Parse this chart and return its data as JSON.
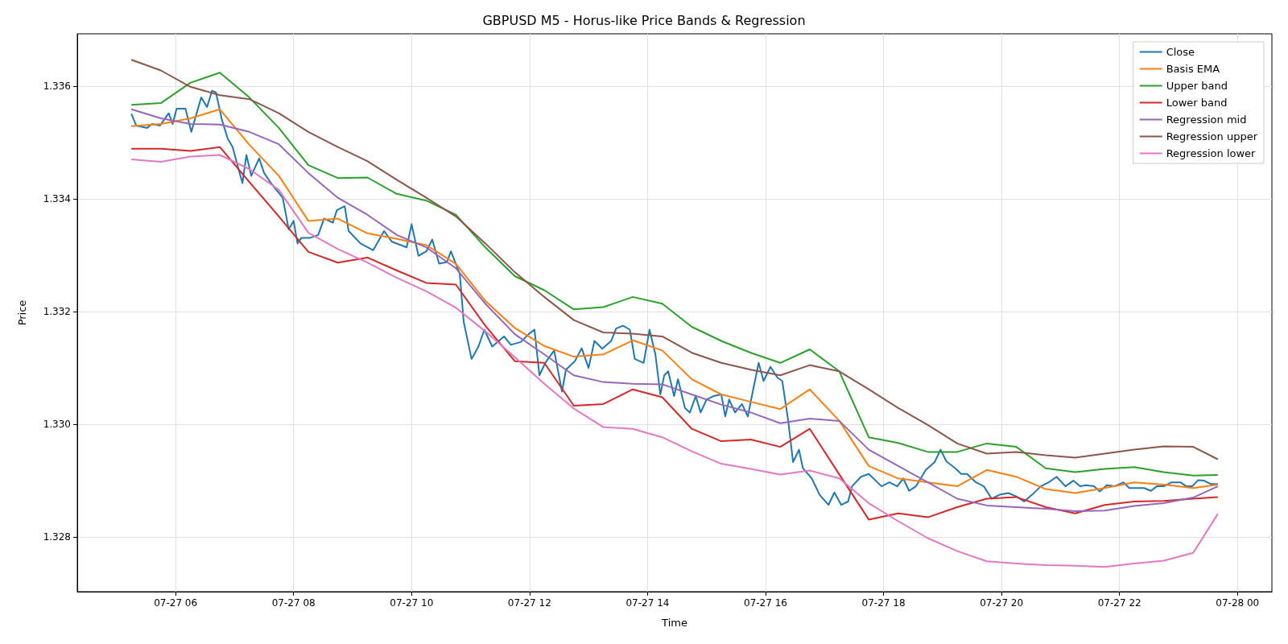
{
  "chart_data": {
    "type": "line",
    "title": "GBPUSD M5 - Horus-like Price Bands & Regression",
    "xlabel": "Time",
    "ylabel": "Price",
    "x": [
      "--07-27T05:15",
      "--07-27T05:45",
      "--07-27T06:15",
      "--07-27T06:45",
      "--07-27T07:15",
      "--07-27T07:45",
      "--07-27T08:15",
      "--07-27T08:45",
      "--07-27T09:15",
      "--07-27T09:45",
      "--07-27T10:15",
      "--07-27T10:45",
      "--07-27T11:15",
      "--07-27T11:45",
      "--07-27T12:15",
      "--07-27T12:45",
      "--07-27T13:15",
      "--07-27T13:45",
      "--07-27T14:15",
      "--07-27T14:45",
      "--07-27T15:15",
      "--07-27T15:45",
      "--07-27T16:15",
      "--07-27T16:45",
      "--07-27T17:15",
      "--07-27T17:45",
      "--07-27T18:15",
      "--07-27T18:45",
      "--07-27T19:15",
      "--07-27T19:45",
      "--07-27T20:15",
      "--07-27T20:45",
      "--07-27T21:15",
      "--07-27T21:45",
      "--07-27T22:15",
      "--07-27T22:45",
      "--07-27T23:15",
      "--07-27T23:40"
    ],
    "series": [
      {
        "name": "Close",
        "color": "#1f77b4",
        "x": [
          "--07-27T05:15",
          "--07-27T05:20",
          "--07-27T05:31",
          "--07-27T05:36",
          "--07-27T05:44",
          "--07-27T05:53",
          "--07-27T05:57",
          "--07-27T06:01",
          "--07-27T06:10",
          "--07-27T06:16",
          "--07-27T06:26",
          "--07-27T06:32",
          "--07-27T06:37",
          "--07-27T06:41",
          "--07-27T06:47",
          "--07-27T06:53",
          "--07-27T06:58",
          "--07-27T07:04",
          "--07-27T07:08",
          "--07-27T07:12",
          "--07-27T07:17",
          "--07-27T07:25",
          "--07-27T07:30",
          "--07-27T07:37",
          "--07-27T07:49",
          "--07-27T07:55",
          "--07-27T08:00",
          "--07-27T08:04",
          "--07-27T08:08",
          "--07-27T08:17",
          "--07-27T08:25",
          "--07-27T08:31",
          "--07-27T08:40",
          "--07-27T08:44",
          "--07-27T08:52",
          "--07-27T08:56",
          "--07-27T09:08",
          "--07-27T09:21",
          "--07-27T09:32",
          "--07-27T09:40",
          "--07-27T09:55",
          "--07-27T10:00",
          "--07-27T10:07",
          "--07-27T10:15",
          "--07-27T10:21",
          "--07-27T10:28",
          "--07-27T10:36",
          "--07-27T10:40",
          "--07-27T10:49",
          "--07-27T10:53",
          "--07-27T11:01",
          "--07-27T11:08",
          "--07-27T11:14",
          "--07-27T11:22",
          "--07-27T11:34",
          "--07-27T11:41",
          "--07-27T11:51",
          "--07-27T11:59",
          "--07-27T12:05",
          "--07-27T12:10",
          "--07-27T12:16",
          "--07-27T12:25",
          "--07-27T12:33",
          "--07-27T12:37",
          "--07-27T12:46",
          "--07-27T12:53",
          "--07-27T13:00",
          "--07-27T13:06",
          "--07-27T13:14",
          "--07-27T13:23",
          "--07-27T13:28",
          "--07-27T13:35",
          "--07-27T13:42",
          "--07-27T13:47",
          "--07-27T13:56",
          "--07-27T14:02",
          "--07-27T14:08",
          "--07-27T14:13",
          "--07-27T14:17",
          "--07-27T14:21",
          "--07-27T14:27",
          "--07-27T14:31",
          "--07-27T14:38",
          "--07-27T14:43",
          "--07-27T14:49",
          "--07-27T14:54",
          "--07-27T15:00",
          "--07-27T15:07",
          "--07-27T15:15",
          "--07-27T15:19",
          "--07-27T15:23",
          "--07-27T15:29",
          "--07-27T15:36",
          "--07-27T15:42",
          "--07-27T15:47",
          "--07-27T15:53",
          "--07-27T15:58",
          "--07-27T16:05",
          "--07-27T16:12",
          "--07-27T16:17",
          "--07-27T16:23",
          "--07-27T16:28",
          "--07-27T16:34",
          "--07-27T16:38",
          "--07-27T16:43",
          "--07-27T16:47",
          "--07-27T16:55",
          "--07-27T17:04",
          "--07-27T17:10",
          "--07-27T17:17",
          "--07-27T17:24",
          "--07-27T17:28",
          "--07-27T17:37",
          "--07-27T17:45",
          "--07-27T17:58",
          "--07-27T18:06",
          "--07-27T18:14",
          "--07-27T18:20",
          "--07-27T18:26",
          "--07-27T18:33",
          "--07-27T18:43",
          "--07-27T18:52",
          "--07-27T18:58",
          "--07-27T19:04",
          "--07-27T19:13",
          "--07-27T19:19",
          "--07-27T19:25",
          "--07-27T19:34",
          "--07-27T19:42",
          "--07-27T19:50",
          "--07-27T19:58",
          "--07-27T20:07",
          "--07-27T20:15",
          "--07-27T20:23",
          "--07-27T20:31",
          "--07-27T20:40",
          "--07-27T20:48",
          "--07-27T20:56",
          "--07-27T21:05",
          "--07-27T21:13",
          "--07-27T21:20",
          "--07-27T21:26",
          "--07-27T21:34",
          "--07-27T21:40",
          "--07-27T21:47",
          "--07-27T21:55",
          "--07-27T22:04",
          "--07-27T22:10",
          "--07-27T22:25",
          "--07-27T22:32",
          "--07-27T22:38",
          "--07-27T22:45",
          "--07-27T22:53",
          "--07-27T23:02",
          "--07-27T23:08",
          "--07-27T23:14",
          "--07-27T23:20",
          "--07-27T23:26",
          "--07-27T23:33",
          "--07-27T23:40"
        ],
        "values": [
          1.33551,
          1.3353,
          1.33526,
          1.33533,
          1.3353,
          1.33552,
          1.33533,
          1.3356,
          1.3356,
          1.33519,
          1.3358,
          1.33563,
          1.33592,
          1.33589,
          1.33541,
          1.33507,
          1.33492,
          1.33453,
          1.33428,
          1.33478,
          1.33441,
          1.33472,
          1.33446,
          1.33428,
          1.33402,
          1.33346,
          1.33361,
          1.33321,
          1.33331,
          1.33331,
          1.33336,
          1.33365,
          1.33358,
          1.3338,
          1.33387,
          1.33343,
          1.33321,
          1.33309,
          1.33343,
          1.33324,
          1.33314,
          1.33355,
          1.33299,
          1.33307,
          1.33328,
          1.33285,
          1.33288,
          1.33307,
          1.33267,
          1.33182,
          1.33116,
          1.33138,
          1.33168,
          1.33138,
          1.33156,
          1.33141,
          1.33146,
          1.3316,
          1.33168,
          1.33087,
          1.33109,
          1.33131,
          1.33058,
          1.33097,
          1.33112,
          1.33135,
          1.331,
          1.33148,
          1.33134,
          1.33148,
          1.3317,
          1.33175,
          1.33168,
          1.33116,
          1.33109,
          1.33168,
          1.33124,
          1.33053,
          1.33087,
          1.33094,
          1.3305,
          1.3308,
          1.33029,
          1.33021,
          1.3305,
          1.33021,
          1.33044,
          1.3305,
          1.33053,
          1.33014,
          1.33044,
          1.33021,
          1.33036,
          1.33014,
          1.33058,
          1.33109,
          1.33077,
          1.33102,
          1.33083,
          1.33077,
          1.33007,
          1.32933,
          1.32955,
          1.32922,
          1.32912,
          1.32904,
          1.32875,
          1.32857,
          1.32879,
          1.32857,
          1.32863,
          1.3289,
          1.32907,
          1.32912,
          1.3289,
          1.32897,
          1.3289,
          1.32904,
          1.32882,
          1.3289,
          1.32919,
          1.32933,
          1.32955,
          1.32934,
          1.32922,
          1.32912,
          1.32912,
          1.32897,
          1.3289,
          1.32868,
          1.32875,
          1.32878,
          1.32872,
          1.32863,
          1.32875,
          1.3289,
          1.32897,
          1.32907,
          1.3289,
          1.329,
          1.3289,
          1.32892,
          1.3289,
          1.32881,
          1.32892,
          1.3289,
          1.32897,
          1.32887,
          1.32887,
          1.32882,
          1.3289,
          1.3289,
          1.32897,
          1.32897,
          1.3289,
          1.3289,
          1.32901,
          1.329,
          1.32894,
          1.32894
        ]
      },
      {
        "name": "Basis EMA",
        "color": "#ff7f0e",
        "values": [
          1.33529,
          1.33533,
          1.33543,
          1.33559,
          1.33496,
          1.33441,
          1.33361,
          1.33365,
          1.33339,
          1.33329,
          1.33318,
          1.33285,
          1.33219,
          1.33171,
          1.33139,
          1.3312,
          1.33124,
          1.33149,
          1.33131,
          1.3308,
          1.33053,
          1.3304,
          1.33027,
          1.33062,
          1.33006,
          1.32926,
          1.32904,
          1.32897,
          1.3289,
          1.32919,
          1.32907,
          1.32885,
          1.32878,
          1.32887,
          1.32897,
          1.32893,
          1.32887,
          1.32893
        ]
      },
      {
        "name": "Upper band",
        "color": "#2ca02c",
        "values": [
          1.33567,
          1.3357,
          1.33606,
          1.33624,
          1.3358,
          1.33526,
          1.3346,
          1.33437,
          1.33438,
          1.33409,
          1.33397,
          1.33372,
          1.33314,
          1.33263,
          1.33238,
          1.33204,
          1.33208,
          1.33226,
          1.33214,
          1.33173,
          1.33148,
          1.33127,
          1.33109,
          1.33133,
          1.33094,
          1.32977,
          1.32967,
          1.32951,
          1.32951,
          1.32966,
          1.3296,
          1.32922,
          1.32915,
          1.32921,
          1.32924,
          1.32915,
          1.32909,
          1.3291
        ]
      },
      {
        "name": "Lower band",
        "color": "#d62728",
        "values": [
          1.33489,
          1.33489,
          1.33485,
          1.33492,
          1.3343,
          1.33369,
          1.33306,
          1.33287,
          1.33296,
          1.33273,
          1.33251,
          1.33248,
          1.33175,
          1.33112,
          1.33109,
          1.33033,
          1.33036,
          1.33062,
          1.33048,
          1.32992,
          1.3297,
          1.32973,
          1.3296,
          1.32992,
          1.32911,
          1.32831,
          1.32842,
          1.32835,
          1.32853,
          1.32868,
          1.32871,
          1.32853,
          1.32842,
          1.32857,
          1.32863,
          1.32864,
          1.32868,
          1.32871
        ]
      },
      {
        "name": "Regression mid",
        "color": "#9467bd",
        "values": [
          1.33559,
          1.33543,
          1.33533,
          1.33532,
          1.33519,
          1.33497,
          1.33446,
          1.33402,
          1.33372,
          1.33336,
          1.33314,
          1.33277,
          1.33214,
          1.3316,
          1.33124,
          1.33087,
          1.33075,
          1.33072,
          1.33071,
          1.33053,
          1.33035,
          1.33021,
          1.33002,
          1.3301,
          1.33006,
          1.32955,
          1.32926,
          1.32897,
          1.32868,
          1.32856,
          1.32853,
          1.3285,
          1.32846,
          1.32847,
          1.32855,
          1.3286,
          1.3287,
          1.3289
        ]
      },
      {
        "name": "Regression upper",
        "color": "#8c564b",
        "values": [
          1.33647,
          1.33628,
          1.33599,
          1.33584,
          1.33577,
          1.33552,
          1.33519,
          1.33492,
          1.33467,
          1.33434,
          1.33402,
          1.33369,
          1.33321,
          1.3327,
          1.33226,
          1.33185,
          1.33163,
          1.33161,
          1.33156,
          1.33127,
          1.33109,
          1.33097,
          1.33087,
          1.33105,
          1.33094,
          1.33062,
          1.33029,
          1.32999,
          1.32966,
          1.32948,
          1.32951,
          1.32945,
          1.32941,
          1.32948,
          1.32955,
          1.32961,
          1.3296,
          1.32938
        ]
      },
      {
        "name": "Regression lower",
        "color": "#e377c2",
        "values": [
          1.3347,
          1.33466,
          1.33475,
          1.33478,
          1.33453,
          1.33416,
          1.3334,
          1.33311,
          1.33287,
          1.3326,
          1.33236,
          1.33207,
          1.33165,
          1.33119,
          1.33072,
          1.33028,
          1.32995,
          1.32992,
          1.32977,
          1.32952,
          1.3293,
          1.32921,
          1.32911,
          1.32918,
          1.32904,
          1.3286,
          1.32828,
          1.32798,
          1.32775,
          1.32757,
          1.32753,
          1.3275,
          1.32749,
          1.32747,
          1.32753,
          1.32758,
          1.32772,
          1.32841
        ]
      }
    ],
    "xlim": [
      "--07-27T04:20",
      "--07-28T00:35"
    ],
    "xticks": [
      {
        "value": "--07-27T06:00",
        "label": "07-27 06"
      },
      {
        "value": "--07-27T08:00",
        "label": "07-27 08"
      },
      {
        "value": "--07-27T10:00",
        "label": "07-27 10"
      },
      {
        "value": "--07-27T12:00",
        "label": "07-27 12"
      },
      {
        "value": "--07-27T14:00",
        "label": "07-27 14"
      },
      {
        "value": "--07-27T16:00",
        "label": "07-27 16"
      },
      {
        "value": "--07-27T18:00",
        "label": "07-27 18"
      },
      {
        "value": "--07-27T20:00",
        "label": "07-27 20"
      },
      {
        "value": "--07-27T22:00",
        "label": "07-27 22"
      },
      {
        "value": "--07-28T00:00",
        "label": "07-28 00"
      }
    ],
    "ylim": [
      1.32703,
      1.33693
    ],
    "yticks": [
      1.328,
      {
        "value": 1.33,
        "label": "1.330"
      },
      1.332,
      1.334,
      1.336
    ],
    "grid": true,
    "legend": "top right"
  }
}
